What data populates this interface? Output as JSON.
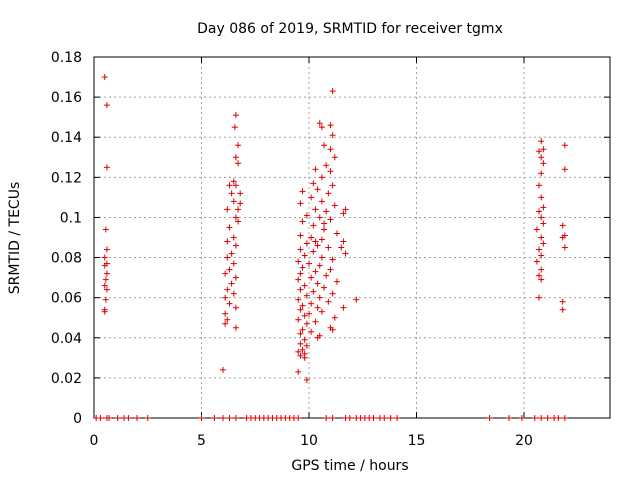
{
  "chart_data": {
    "type": "scatter",
    "title": "Day 086 of 2019, SRMTID for receiver tgmx",
    "xlabel": "GPS time / hours",
    "ylabel": "SRMTID / TECUs",
    "xlim": [
      0,
      24
    ],
    "ylim": [
      0,
      0.18
    ],
    "x_ticks": [
      0,
      5,
      10,
      15,
      20
    ],
    "x_tick_labels": [
      "0",
      "5",
      "10",
      "15",
      "20"
    ],
    "y_ticks": [
      0,
      0.02,
      0.04,
      0.06,
      0.08,
      0.1,
      0.12,
      0.14,
      0.16,
      0.18
    ],
    "y_tick_labels": [
      "0",
      "0.02",
      "0.04",
      "0.06",
      "0.08",
      "0.1",
      "0.12",
      "0.14",
      "0.16",
      "0.18"
    ],
    "grid": true,
    "marker": "+",
    "color": "#dd0000",
    "series": [
      {
        "name": "SRMTID",
        "points": [
          [
            0.5,
            0.17
          ],
          [
            0.6,
            0.156
          ],
          [
            0.6,
            0.125
          ],
          [
            0.55,
            0.094
          ],
          [
            0.6,
            0.084
          ],
          [
            0.5,
            0.08
          ],
          [
            0.6,
            0.077
          ],
          [
            0.5,
            0.076
          ],
          [
            0.6,
            0.072
          ],
          [
            0.55,
            0.069
          ],
          [
            0.5,
            0.066
          ],
          [
            0.6,
            0.064
          ],
          [
            0.55,
            0.059
          ],
          [
            0.5,
            0.054
          ],
          [
            0.5,
            0.053
          ],
          [
            6.6,
            0.151
          ],
          [
            6.55,
            0.145
          ],
          [
            6.7,
            0.136
          ],
          [
            6.6,
            0.13
          ],
          [
            6.7,
            0.127
          ],
          [
            6.5,
            0.118
          ],
          [
            6.6,
            0.116
          ],
          [
            6.3,
            0.116
          ],
          [
            6.8,
            0.112
          ],
          [
            6.5,
            0.108
          ],
          [
            6.2,
            0.104
          ],
          [
            6.6,
            0.1
          ],
          [
            6.7,
            0.098
          ],
          [
            6.3,
            0.095
          ],
          [
            6.5,
            0.09
          ],
          [
            6.2,
            0.088
          ],
          [
            6.6,
            0.086
          ],
          [
            6.4,
            0.082
          ],
          [
            6.2,
            0.08
          ],
          [
            6.5,
            0.077
          ],
          [
            6.3,
            0.074
          ],
          [
            6.1,
            0.072
          ],
          [
            6.6,
            0.07
          ],
          [
            6.4,
            0.067
          ],
          [
            6.2,
            0.064
          ],
          [
            6.5,
            0.062
          ],
          [
            6.1,
            0.06
          ],
          [
            6.3,
            0.057
          ],
          [
            6.6,
            0.055
          ],
          [
            6.1,
            0.052
          ],
          [
            6.2,
            0.049
          ],
          [
            6.1,
            0.047
          ],
          [
            6.6,
            0.045
          ],
          [
            6.0,
            0.024
          ],
          [
            6.7,
            0.104
          ],
          [
            6.4,
            0.112
          ],
          [
            6.8,
            0.107
          ],
          [
            11.1,
            0.163
          ],
          [
            10.5,
            0.147
          ],
          [
            10.6,
            0.145
          ],
          [
            11.0,
            0.146
          ],
          [
            11.1,
            0.141
          ],
          [
            10.7,
            0.136
          ],
          [
            11.0,
            0.134
          ],
          [
            11.2,
            0.13
          ],
          [
            10.8,
            0.126
          ],
          [
            10.3,
            0.124
          ],
          [
            11.0,
            0.123
          ],
          [
            10.6,
            0.12
          ],
          [
            10.2,
            0.117
          ],
          [
            11.1,
            0.116
          ],
          [
            10.4,
            0.114
          ],
          [
            9.7,
            0.113
          ],
          [
            10.9,
            0.112
          ],
          [
            10.1,
            0.11
          ],
          [
            10.6,
            0.108
          ],
          [
            9.6,
            0.107
          ],
          [
            11.2,
            0.106
          ],
          [
            10.3,
            0.104
          ],
          [
            10.8,
            0.103
          ],
          [
            9.9,
            0.101
          ],
          [
            11.6,
            0.102
          ],
          [
            10.5,
            0.1
          ],
          [
            11.0,
            0.099
          ],
          [
            9.7,
            0.098
          ],
          [
            10.2,
            0.096
          ],
          [
            10.7,
            0.094
          ],
          [
            11.3,
            0.092
          ],
          [
            9.6,
            0.091
          ],
          [
            10.1,
            0.09
          ],
          [
            10.6,
            0.089
          ],
          [
            11.6,
            0.088
          ],
          [
            9.9,
            0.087
          ],
          [
            10.4,
            0.086
          ],
          [
            10.9,
            0.085
          ],
          [
            9.6,
            0.084
          ],
          [
            10.2,
            0.083
          ],
          [
            11.7,
            0.082
          ],
          [
            9.8,
            0.081
          ],
          [
            10.6,
            0.08
          ],
          [
            11.1,
            0.079
          ],
          [
            9.5,
            0.078
          ],
          [
            10.0,
            0.077
          ],
          [
            10.5,
            0.076
          ],
          [
            9.7,
            0.075
          ],
          [
            11.0,
            0.074
          ],
          [
            10.3,
            0.073
          ],
          [
            9.6,
            0.072
          ],
          [
            10.8,
            0.071
          ],
          [
            10.1,
            0.07
          ],
          [
            9.5,
            0.069
          ],
          [
            11.3,
            0.068
          ],
          [
            10.4,
            0.067
          ],
          [
            9.8,
            0.066
          ],
          [
            10.7,
            0.065
          ],
          [
            9.6,
            0.064
          ],
          [
            10.2,
            0.063
          ],
          [
            11.1,
            0.062
          ],
          [
            9.9,
            0.061
          ],
          [
            10.5,
            0.06
          ],
          [
            9.5,
            0.059
          ],
          [
            10.9,
            0.058
          ],
          [
            10.1,
            0.057
          ],
          [
            12.2,
            0.059
          ],
          [
            9.7,
            0.056
          ],
          [
            10.4,
            0.055
          ],
          [
            11.6,
            0.055
          ],
          [
            9.6,
            0.054
          ],
          [
            10.6,
            0.053
          ],
          [
            10.0,
            0.052
          ],
          [
            9.8,
            0.051
          ],
          [
            11.2,
            0.05
          ],
          [
            9.5,
            0.049
          ],
          [
            10.3,
            0.048
          ],
          [
            9.9,
            0.047
          ],
          [
            11.0,
            0.045
          ],
          [
            9.7,
            0.044
          ],
          [
            10.1,
            0.043
          ],
          [
            9.6,
            0.042
          ],
          [
            10.5,
            0.041
          ],
          [
            11.1,
            0.044
          ],
          [
            9.8,
            0.039
          ],
          [
            10.4,
            0.04
          ],
          [
            9.6,
            0.037
          ],
          [
            9.9,
            0.036
          ],
          [
            9.7,
            0.034
          ],
          [
            9.5,
            0.033
          ],
          [
            9.8,
            0.032
          ],
          [
            9.6,
            0.031
          ],
          [
            9.8,
            0.03
          ],
          [
            9.5,
            0.023
          ],
          [
            9.9,
            0.019
          ],
          [
            10.3,
            0.088
          ],
          [
            10.7,
            0.097
          ],
          [
            11.5,
            0.085
          ],
          [
            11.7,
            0.104
          ],
          [
            20.8,
            0.138
          ],
          [
            20.9,
            0.134
          ],
          [
            20.7,
            0.133
          ],
          [
            20.8,
            0.13
          ],
          [
            20.9,
            0.127
          ],
          [
            20.8,
            0.122
          ],
          [
            20.7,
            0.116
          ],
          [
            20.8,
            0.11
          ],
          [
            20.9,
            0.105
          ],
          [
            20.7,
            0.103
          ],
          [
            20.8,
            0.1
          ],
          [
            20.9,
            0.097
          ],
          [
            20.6,
            0.094
          ],
          [
            20.8,
            0.09
          ],
          [
            20.9,
            0.087
          ],
          [
            20.7,
            0.084
          ],
          [
            20.8,
            0.081
          ],
          [
            20.6,
            0.078
          ],
          [
            20.8,
            0.074
          ],
          [
            20.7,
            0.071
          ],
          [
            20.8,
            0.069
          ],
          [
            20.7,
            0.06
          ],
          [
            21.9,
            0.136
          ],
          [
            21.9,
            0.124
          ],
          [
            21.8,
            0.096
          ],
          [
            21.9,
            0.091
          ],
          [
            21.8,
            0.09
          ],
          [
            21.9,
            0.085
          ],
          [
            21.8,
            0.058
          ],
          [
            21.8,
            0.054
          ],
          [
            0.1,
            0
          ],
          [
            0.3,
            0
          ],
          [
            0.6,
            0
          ],
          [
            0.7,
            0
          ],
          [
            1.1,
            0
          ],
          [
            1.4,
            0
          ],
          [
            1.6,
            0
          ],
          [
            2.0,
            0
          ],
          [
            2.5,
            0
          ],
          [
            5.0,
            0
          ],
          [
            5.6,
            0
          ],
          [
            6.0,
            0
          ],
          [
            6.3,
            0
          ],
          [
            6.6,
            0
          ],
          [
            7.1,
            0
          ],
          [
            7.3,
            0
          ],
          [
            7.5,
            0
          ],
          [
            7.7,
            0
          ],
          [
            7.9,
            0
          ],
          [
            8.1,
            0
          ],
          [
            8.3,
            0
          ],
          [
            8.5,
            0
          ],
          [
            8.7,
            0
          ],
          [
            8.9,
            0
          ],
          [
            9.1,
            0
          ],
          [
            9.3,
            0
          ],
          [
            9.5,
            0
          ],
          [
            10.8,
            0
          ],
          [
            11.1,
            0
          ],
          [
            11.7,
            0
          ],
          [
            11.9,
            0
          ],
          [
            12.2,
            0
          ],
          [
            12.4,
            0
          ],
          [
            12.6,
            0
          ],
          [
            12.8,
            0
          ],
          [
            13.0,
            0
          ],
          [
            13.3,
            0
          ],
          [
            13.5,
            0
          ],
          [
            13.8,
            0
          ],
          [
            14.1,
            0
          ],
          [
            18.4,
            0
          ],
          [
            19.3,
            0
          ],
          [
            19.9,
            0
          ],
          [
            20.5,
            0
          ],
          [
            20.8,
            0
          ],
          [
            21.1,
            0
          ],
          [
            21.4,
            0
          ],
          [
            21.6,
            0
          ],
          [
            21.9,
            0
          ]
        ]
      }
    ]
  }
}
